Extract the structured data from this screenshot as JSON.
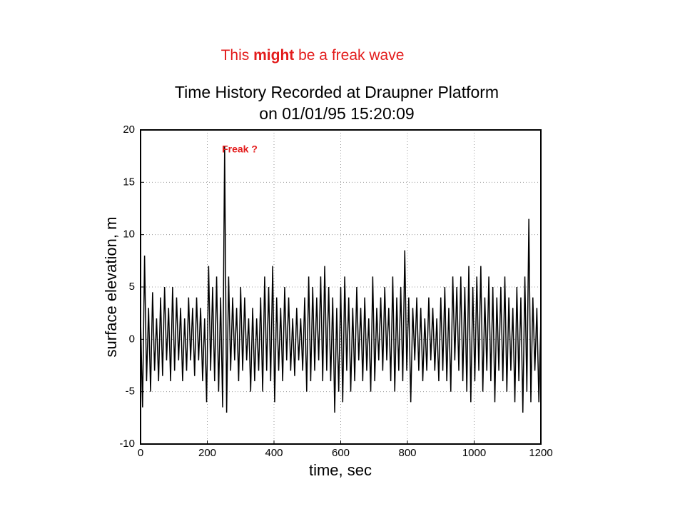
{
  "headline": [
    "This ",
    "might",
    " be a freak wave"
  ],
  "chart_data": {
    "type": "line",
    "title": [
      "Time History Recorded at Draupner Platform",
      "on 01/01/95 15:20:09"
    ],
    "xlabel": "time, sec",
    "ylabel": "surface elevation, m",
    "annotation": "Freak ?",
    "xlim": [
      0,
      1200
    ],
    "xticks": [
      0,
      200,
      400,
      600,
      800,
      1000,
      1200
    ],
    "ylim": [
      -10,
      20
    ],
    "yticks": [
      -10,
      -5,
      0,
      5,
      10,
      15,
      20
    ],
    "grid": true,
    "series": [
      {
        "name": "surface elevation",
        "color": "#000000",
        "x": [
          0,
          6,
          12,
          18,
          24,
          30,
          36,
          42,
          48,
          54,
          60,
          66,
          72,
          78,
          84,
          90,
          96,
          102,
          108,
          114,
          120,
          126,
          132,
          138,
          144,
          150,
          156,
          162,
          168,
          174,
          180,
          186,
          192,
          198,
          204,
          210,
          216,
          222,
          228,
          234,
          240,
          246,
          252,
          258,
          264,
          270,
          276,
          282,
          288,
          294,
          300,
          306,
          312,
          318,
          324,
          330,
          336,
          342,
          348,
          354,
          360,
          366,
          372,
          378,
          384,
          390,
          396,
          402,
          408,
          414,
          420,
          426,
          432,
          438,
          444,
          450,
          456,
          462,
          468,
          474,
          480,
          486,
          492,
          498,
          504,
          510,
          516,
          522,
          528,
          534,
          540,
          546,
          552,
          558,
          564,
          570,
          576,
          582,
          588,
          594,
          600,
          606,
          612,
          618,
          624,
          630,
          636,
          642,
          648,
          654,
          660,
          666,
          672,
          678,
          684,
          690,
          696,
          702,
          708,
          714,
          720,
          726,
          732,
          738,
          744,
          750,
          756,
          762,
          768,
          774,
          780,
          786,
          792,
          798,
          804,
          810,
          816,
          822,
          828,
          834,
          840,
          846,
          852,
          858,
          864,
          870,
          876,
          882,
          888,
          894,
          900,
          906,
          912,
          918,
          924,
          930,
          936,
          942,
          948,
          954,
          960,
          966,
          972,
          978,
          984,
          990,
          996,
          1002,
          1008,
          1014,
          1020,
          1026,
          1032,
          1038,
          1044,
          1050,
          1056,
          1062,
          1068,
          1074,
          1080,
          1086,
          1092,
          1098,
          1104,
          1110,
          1116,
          1122,
          1128,
          1134,
          1140,
          1146,
          1152,
          1158,
          1164,
          1170,
          1176,
          1182,
          1188,
          1194,
          1200
        ],
        "values": [
          2,
          -6.5,
          8,
          -4,
          3,
          -5,
          4.5,
          -3,
          2,
          -4,
          4,
          -3.5,
          5,
          -2,
          3,
          -4,
          5,
          -3,
          4,
          -2,
          3,
          -4,
          2,
          -3,
          4,
          -2,
          3,
          -3.5,
          4,
          -2,
          3,
          -4,
          2,
          -6,
          7,
          -3,
          5,
          -4,
          6,
          -5,
          4,
          -6.5,
          18.5,
          -7,
          6,
          -3,
          4,
          -2,
          3,
          -4,
          5,
          -3,
          4,
          -2,
          2,
          -5,
          3,
          -4,
          2,
          -3,
          4,
          -5,
          6,
          -3,
          5,
          -4,
          7,
          -6,
          4,
          -3,
          3,
          -4,
          5,
          -2,
          4,
          -3,
          2,
          -3.5,
          3,
          -2,
          2,
          -3,
          4,
          -5,
          6,
          -4,
          5,
          -3,
          4,
          -2,
          6,
          -4,
          7,
          -3,
          5,
          -4,
          4,
          -7,
          3,
          -5,
          5,
          -6,
          6,
          -3,
          4,
          -5,
          3,
          -4,
          5,
          -2,
          3,
          -4,
          4,
          -3,
          2,
          -5,
          6,
          -4,
          3,
          -2,
          4,
          -3,
          5,
          -2,
          3,
          -4,
          6,
          -5,
          4,
          -3,
          5,
          -4,
          8.5,
          -3,
          4,
          -6,
          3,
          -2,
          4,
          -3,
          3,
          -4,
          2,
          -3,
          4,
          -2,
          3,
          -3,
          2,
          -4,
          4,
          -3,
          5,
          -4,
          3,
          -5,
          6,
          -2,
          5,
          -3,
          6,
          -4,
          5,
          -5,
          7,
          -6,
          5,
          -4,
          6,
          -3,
          7,
          -5,
          4,
          -3,
          6,
          -4,
          5,
          -6,
          4,
          -3,
          5,
          -4,
          6,
          -5,
          4,
          -3,
          3,
          -6,
          5,
          -4,
          4,
          -7,
          6,
          -5,
          11.5,
          -6,
          4,
          -3,
          3,
          -6,
          2
        ]
      }
    ]
  }
}
